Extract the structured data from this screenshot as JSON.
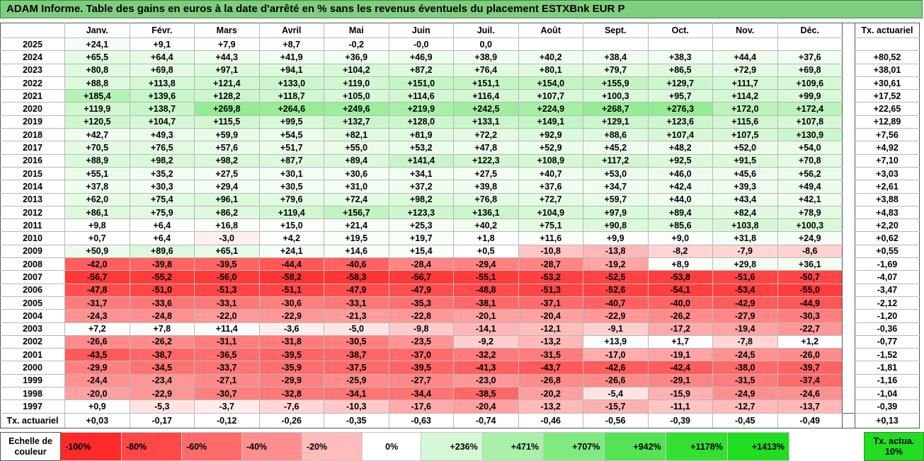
{
  "title": "ADAM Informe. Table des gains en euros à la date d'arrêté en % sans les revenus éventuels du placement ESTXBnk EUR P",
  "colors": {
    "title_bg": "#7fce7f",
    "neg_max": "#ff2a2a",
    "pos_max": "#22dd22",
    "zero": "#ffffff"
  },
  "chart_data": {
    "type": "table",
    "title": "ADAM Informe. Table des gains en euros à la date d'arrêté en % sans les revenus éventuels du placement ESTXBnk EUR P",
    "months": [
      "Janv.",
      "Févr.",
      "Mars",
      "Avril",
      "Mai",
      "Juin",
      "Juil.",
      "Août",
      "Sept.",
      "Oct.",
      "Nov.",
      "Déc."
    ],
    "actuarial_header": "Tx. actuariel",
    "rows": [
      {
        "year": "2025",
        "values": [
          "+24,1",
          "+9,1",
          "+7,9",
          "+8,7",
          "-0,2",
          "-0,0",
          "0,0",
          "",
          "",
          "",
          "",
          ""
        ],
        "act": ""
      },
      {
        "year": "2024",
        "values": [
          "+65,5",
          "+64,4",
          "+44,3",
          "+41,9",
          "+36,9",
          "+46,9",
          "+38,9",
          "+40,2",
          "+38,4",
          "+38,3",
          "+44,4",
          "+37,6"
        ],
        "act": "+80,52"
      },
      {
        "year": "2023",
        "values": [
          "+80,8",
          "+69,8",
          "+97,1",
          "+94,1",
          "+104,2",
          "+87,2",
          "+76,4",
          "+80,1",
          "+79,7",
          "+86,5",
          "+72,9",
          "+69,8"
        ],
        "act": "+38,01"
      },
      {
        "year": "2022",
        "values": [
          "+88,8",
          "+113,8",
          "+121,4",
          "+133,0",
          "+119,0",
          "+151,0",
          "+151,1",
          "+154,0",
          "+155,9",
          "+129,7",
          "+111,7",
          "+109,6"
        ],
        "act": "+30,61"
      },
      {
        "year": "2021",
        "values": [
          "+185,4",
          "+139,6",
          "+128,2",
          "+118,7",
          "+105,0",
          "+114,6",
          "+116,4",
          "+107,7",
          "+100,3",
          "+95,7",
          "+114,2",
          "+99,9"
        ],
        "act": "+17,52"
      },
      {
        "year": "2020",
        "values": [
          "+119,9",
          "+138,7",
          "+269,8",
          "+264,6",
          "+249,6",
          "+219,9",
          "+242,5",
          "+224,9",
          "+268,7",
          "+276,3",
          "+172,0",
          "+172,4"
        ],
        "act": "+22,65"
      },
      {
        "year": "2019",
        "values": [
          "+120,5",
          "+104,7",
          "+115,5",
          "+99,5",
          "+132,7",
          "+128,0",
          "+133,1",
          "+149,1",
          "+129,1",
          "+123,6",
          "+115,6",
          "+107,8"
        ],
        "act": "+12,89"
      },
      {
        "year": "2018",
        "values": [
          "+42,7",
          "+49,3",
          "+59,9",
          "+54,5",
          "+82,1",
          "+81,9",
          "+72,2",
          "+92,9",
          "+88,6",
          "+107,4",
          "+107,5",
          "+130,9"
        ],
        "act": "+7,56"
      },
      {
        "year": "2017",
        "values": [
          "+70,5",
          "+76,5",
          "+57,6",
          "+51,7",
          "+55,0",
          "+53,2",
          "+47,8",
          "+52,9",
          "+45,2",
          "+48,2",
          "+52,0",
          "+54,0"
        ],
        "act": "+4,92"
      },
      {
        "year": "2016",
        "values": [
          "+88,9",
          "+98,2",
          "+98,2",
          "+87,7",
          "+89,4",
          "+141,4",
          "+122,3",
          "+108,9",
          "+117,2",
          "+92,5",
          "+91,5",
          "+70,8"
        ],
        "act": "+7,10"
      },
      {
        "year": "2015",
        "values": [
          "+55,1",
          "+35,2",
          "+27,5",
          "+30,1",
          "+30,6",
          "+34,1",
          "+27,5",
          "+40,7",
          "+53,0",
          "+46,0",
          "+45,6",
          "+56,2"
        ],
        "act": "+3,03"
      },
      {
        "year": "2014",
        "values": [
          "+37,8",
          "+30,3",
          "+29,4",
          "+30,5",
          "+31,0",
          "+37,2",
          "+39,8",
          "+37,6",
          "+34,7",
          "+42,4",
          "+39,3",
          "+49,4"
        ],
        "act": "+2,61"
      },
      {
        "year": "2013",
        "values": [
          "+62,0",
          "+75,4",
          "+96,1",
          "+79,6",
          "+72,4",
          "+98,2",
          "+76,8",
          "+72,7",
          "+59,7",
          "+44,0",
          "+43,4",
          "+42,1"
        ],
        "act": "+3,88"
      },
      {
        "year": "2012",
        "values": [
          "+86,1",
          "+75,9",
          "+86,2",
          "+119,4",
          "+156,7",
          "+123,3",
          "+136,1",
          "+104,9",
          "+97,9",
          "+89,4",
          "+82,4",
          "+78,9"
        ],
        "act": "+4,83"
      },
      {
        "year": "2011",
        "values": [
          "+9,8",
          "+6,4",
          "+16,8",
          "+15,0",
          "+21,4",
          "+25,3",
          "+40,2",
          "+75,1",
          "+90,8",
          "+85,6",
          "+103,8",
          "+100,3"
        ],
        "act": "+2,20"
      },
      {
        "year": "2010",
        "values": [
          "+0,7",
          "+6,4",
          "-3,0",
          "+4,2",
          "+19,5",
          "+19,7",
          "+1,8",
          "+11,6",
          "+9,9",
          "+9,0",
          "+31,8",
          "+24,9"
        ],
        "act": "+0,62"
      },
      {
        "year": "2009",
        "values": [
          "+50,9",
          "+89,6",
          "+65,1",
          "+24,1",
          "+14,6",
          "+15,4",
          "+0,5",
          "-10,8",
          "-13,8",
          "-8,2",
          "-7,9",
          "-8,6"
        ],
        "act": "+0,55"
      },
      {
        "year": "2008",
        "values": [
          "-42,0",
          "-39,8",
          "-39,5",
          "-44,4",
          "-40,6",
          "-28,4",
          "-29,4",
          "-28,7",
          "-19,2",
          "+8,9",
          "+29,8",
          "+36,1"
        ],
        "act": "-1,69"
      },
      {
        "year": "2007",
        "values": [
          "-56,7",
          "-55,2",
          "-56,0",
          "-58,2",
          "-58,3",
          "-56,7",
          "-55,1",
          "-53,2",
          "-52,5",
          "-53,8",
          "-51,6",
          "-50,7"
        ],
        "act": "-4,07"
      },
      {
        "year": "2006",
        "values": [
          "-47,8",
          "-51,0",
          "-51,3",
          "-51,1",
          "-47,9",
          "-47,9",
          "-48,8",
          "-51,3",
          "-52,6",
          "-54,1",
          "-53,4",
          "-55,0"
        ],
        "act": "-3,47"
      },
      {
        "year": "2005",
        "values": [
          "-31,7",
          "-33,6",
          "-33,1",
          "-30,6",
          "-33,1",
          "-35,3",
          "-38,1",
          "-37,1",
          "-40,7",
          "-40,0",
          "-42,9",
          "-44,9"
        ],
        "act": "-2,12"
      },
      {
        "year": "2004",
        "values": [
          "-24,3",
          "-24,8",
          "-22,0",
          "-22,9",
          "-21,3",
          "-22,8",
          "-20,1",
          "-20,4",
          "-22,9",
          "-26,2",
          "-27,9",
          "-30,3"
        ],
        "act": "-1,20"
      },
      {
        "year": "2003",
        "values": [
          "+7,2",
          "+7,8",
          "+11,4",
          "-3,6",
          "-5,0",
          "-9,8",
          "-14,1",
          "-12,1",
          "-9,1",
          "-17,2",
          "-19,4",
          "-22,7"
        ],
        "act": "-0,36"
      },
      {
        "year": "2002",
        "values": [
          "-26,6",
          "-26,2",
          "-31,1",
          "-31,8",
          "-30,5",
          "-23,5",
          "-9,2",
          "-13,2",
          "+13,9",
          "+1,7",
          "-7,8",
          "+1,2"
        ],
        "act": "-0,77"
      },
      {
        "year": "2001",
        "values": [
          "-43,5",
          "-38,7",
          "-36,5",
          "-39,5",
          "-38,7",
          "-37,0",
          "-32,2",
          "-31,5",
          "-17,0",
          "-19,1",
          "-24,5",
          "-26,0"
        ],
        "act": "-1,52"
      },
      {
        "year": "2000",
        "values": [
          "-29,9",
          "-34,5",
          "-33,7",
          "-35,9",
          "-37,5",
          "-39,5",
          "-41,3",
          "-43,7",
          "-42,6",
          "-42,4",
          "-38,0",
          "-39,7"
        ],
        "act": "-1,81"
      },
      {
        "year": "1999",
        "values": [
          "-24,4",
          "-23,4",
          "-27,1",
          "-29,9",
          "-25,9",
          "-27,7",
          "-23,0",
          "-26,8",
          "-26,6",
          "-29,1",
          "-31,5",
          "-37,4"
        ],
        "act": "-1,16"
      },
      {
        "year": "1998",
        "values": [
          "-20,0",
          "-22,9",
          "-30,7",
          "-32,8",
          "-34,1",
          "-34,4",
          "-38,5",
          "-20,2",
          "-5,4",
          "-15,9",
          "-24,9",
          "-24,6"
        ],
        "act": "-1,04"
      },
      {
        "year": "1997",
        "values": [
          "+0,9",
          "-5,3",
          "-3,7",
          "-7,6",
          "-10,3",
          "-17,6",
          "-20,4",
          "-13,2",
          "-15,7",
          "-11,1",
          "-12,7",
          "-13,7"
        ],
        "act": "-0,39"
      }
    ],
    "summary": {
      "label": "Tx. actuariel",
      "values": [
        "+0,03",
        "-0,17",
        "-0,12",
        "-0,26",
        "-0,35",
        "-0,63",
        "-0,74",
        "-0,46",
        "-0,56",
        "-0,39",
        "-0,45",
        "-0,49"
      ],
      "act": "+0,13"
    },
    "color_scale": {
      "label": "Echelle de couleur",
      "steps": [
        {
          "label": "-100%",
          "color": "#ff2a2a"
        },
        {
          "label": "-80%",
          "color": "#ff4848"
        },
        {
          "label": "-60%",
          "color": "#ff6a6a"
        },
        {
          "label": "-40%",
          "color": "#ff8f8f"
        },
        {
          "label": "-20%",
          "color": "#ffbcbc"
        },
        {
          "label": "0%",
          "color": "#ffffff"
        },
        {
          "label": "+236%",
          "color": "#d6f8d6"
        },
        {
          "label": "+471%",
          "color": "#a9f0a9"
        },
        {
          "label": "+707%",
          "color": "#80ea80"
        },
        {
          "label": "+942%",
          "color": "#55e355"
        },
        {
          "label": "+1178%",
          "color": "#33df33"
        },
        {
          "label": "+1413%",
          "color": "#22dd22"
        }
      ],
      "tx_label": "Tx. actua. 10%",
      "tx_color": "#22dd22"
    }
  }
}
